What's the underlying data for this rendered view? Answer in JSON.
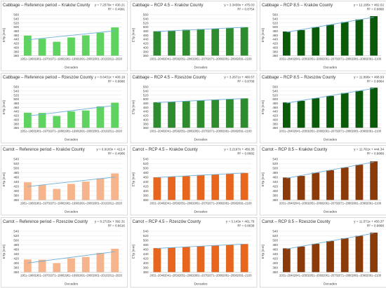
{
  "colors": {
    "panel_border": "#d0d0d0",
    "gridline": "#e4e4e4",
    "axis_text": "#404040",
    "trend": "#6fb0d8",
    "cabbage_ref": "#5fd35f",
    "cabbage_rcp45": "#2e8b2e",
    "cabbage_rcp85": "#0a5a0a",
    "carrot_ref": "#f5b48c",
    "carrot_rcp45": "#e8651e",
    "carrot_rcp85": "#8b3a0a"
  },
  "chart_data": [
    {
      "type": "bar",
      "title": "Cabbage – Reference period – Kraków County",
      "equation": "y = 7.2579x + 430.21",
      "r2": "R² = 0.4991",
      "xlabel": "Decades",
      "ylabel": "ETp [mm]",
      "ylim": [
        360,
        560
      ],
      "yticks": [
        "360",
        "380",
        "400",
        "420",
        "440",
        "460",
        "480",
        "500",
        "520",
        "540",
        "560"
      ],
      "categories": [
        "1951–1960",
        "1961–1970",
        "1971–1980",
        "1981–1990",
        "1991–2000",
        "2001–2010",
        "2011–2020"
      ],
      "values": [
        458,
        443,
        428,
        449,
        459,
        472,
        498
      ],
      "trend": [
        437.47,
        444.73,
        451.99,
        459.24,
        466.5,
        473.76,
        481.02
      ],
      "color_key": "cabbage_ref"
    },
    {
      "type": "bar",
      "title": "Cabbage – RCP 4.5 – Kraków County",
      "equation": "y = 3.3438x + 475.03",
      "r2": "R² = 0.8754",
      "xlabel": "Decades",
      "ylabel": "ETp [mm]",
      "ylim": [
        360,
        560
      ],
      "yticks": [
        "360",
        "380",
        "400",
        "420",
        "440",
        "460",
        "480",
        "500",
        "520",
        "540",
        "560"
      ],
      "categories": [
        "2031–2040",
        "2041–2050",
        "2051–2060",
        "2061–2070",
        "2071–2080",
        "2081–2090",
        "2091–2100"
      ],
      "values": [
        479,
        483,
        487,
        490,
        492,
        496,
        499
      ],
      "trend": [
        478.37,
        481.72,
        485.06,
        488.41,
        491.75,
        495.09,
        498.44
      ],
      "color_key": "cabbage_rcp45"
    },
    {
      "type": "bar",
      "title": "Cabbage – RCP 8.5 – Kraków County",
      "equation": "y = 12.195x + 462.52",
      "r2": "R² = 0.9868",
      "xlabel": "Decades",
      "ylabel": "ETp [mm]",
      "ylim": [
        360,
        560
      ],
      "yticks": [
        "360",
        "380",
        "400",
        "420",
        "440",
        "460",
        "480",
        "500",
        "520",
        "540",
        "560"
      ],
      "categories": [
        "2031–2040",
        "2041–2050",
        "2051–2060",
        "2061–2070",
        "2071–2080",
        "2081–2090",
        "2091–2100"
      ],
      "values": [
        478,
        485,
        499,
        511,
        524,
        537,
        553
      ],
      "trend": [
        474.72,
        486.91,
        499.11,
        511.3,
        523.5,
        535.69,
        547.89
      ],
      "color_key": "cabbage_rcp85"
    },
    {
      "type": "bar",
      "title": "Cabbage – Reference period – Rzeszów County",
      "equation": "y = 8.6431x + 409.19",
      "r2": "R² = 0.6686",
      "xlabel": "Decades",
      "ylabel": "ETp [mm]",
      "ylim": [
        360,
        560
      ],
      "yticks": [
        "360",
        "380",
        "400",
        "420",
        "440",
        "460",
        "480",
        "500",
        "520",
        "540",
        "560"
      ],
      "categories": [
        "1951–1960",
        "1961–1970",
        "1971–1980",
        "1981–1990",
        "1991–2000",
        "2001–2010",
        "2011–2020"
      ],
      "values": [
        434,
        433,
        418,
        440,
        445,
        465,
        483
      ],
      "trend": [
        417.83,
        426.48,
        435.12,
        443.76,
        452.41,
        461.05,
        469.69
      ],
      "color_key": "cabbage_ref"
    },
    {
      "type": "bar",
      "title": "Cabbage – RCP 4.5 – Rzeszów County",
      "equation": "y = 3.2671x + 480.67",
      "r2": "R² = 0.8709",
      "xlabel": "Decades",
      "ylabel": "ETp [mm]",
      "ylim": [
        360,
        560
      ],
      "yticks": [
        "360",
        "380",
        "400",
        "420",
        "440",
        "460",
        "480",
        "500",
        "520",
        "540",
        "560"
      ],
      "categories": [
        "2031–2040",
        "2041–2050",
        "2051–2060",
        "2061–2070",
        "2071–2080",
        "2081–2090",
        "2091–2100"
      ],
      "values": [
        485,
        488,
        491,
        494,
        498,
        501,
        504
      ],
      "trend": [
        483.94,
        487.2,
        490.47,
        493.74,
        497.01,
        500.27,
        503.54
      ],
      "color_key": "cabbage_rcp45"
    },
    {
      "type": "bar",
      "title": "Cabbage – RCP 8.5 – Rzeszów County",
      "equation": "y = 11.996x + 468.93",
      "r2": "R² = 0.9864",
      "xlabel": "Decades",
      "ylabel": "ETp [mm]",
      "ylim": [
        360,
        560
      ],
      "yticks": [
        "360",
        "380",
        "400",
        "420",
        "440",
        "460",
        "480",
        "500",
        "520",
        "540",
        "560"
      ],
      "categories": [
        "2031–2040",
        "2041–2050",
        "2051–2060",
        "2061–2070",
        "2071–2080",
        "2081–2090",
        "2091–2100"
      ],
      "values": [
        484,
        492,
        505,
        516,
        530,
        541,
        556
      ],
      "trend": [
        480.93,
        492.92,
        504.92,
        516.91,
        528.91,
        540.91,
        552.9
      ],
      "color_key": "cabbage_rcp85"
    },
    {
      "type": "bar",
      "title": "Carrot – Reference period – Kraków County",
      "equation": "y = 6.9183x + 412.4",
      "r2": "R² = 0.4906",
      "xlabel": "Decades",
      "ylabel": "ETp [mm]",
      "ylim": [
        360,
        540
      ],
      "yticks": [
        "360",
        "380",
        "400",
        "420",
        "440",
        "460",
        "480",
        "500",
        "520",
        "540"
      ],
      "categories": [
        "1951–1960",
        "1961–1970",
        "1971–1980",
        "1981–1990",
        "1991–2000",
        "2001–2010",
        "2011–2020"
      ],
      "values": [
        438,
        426,
        409,
        431,
        441,
        455,
        477
      ],
      "trend": [
        419.32,
        426.24,
        433.15,
        440.07,
        446.99,
        453.91,
        460.83
      ],
      "color_key": "carrot_ref"
    },
    {
      "type": "bar",
      "title": "Carrot – RCP 4.5 – Kraków County",
      "equation": "y = 3.2197x + 456.35",
      "r2": "R² = 0.8682",
      "xlabel": "Decades",
      "ylabel": "ETp [mm]",
      "ylim": [
        360,
        540
      ],
      "yticks": [
        "360",
        "380",
        "400",
        "420",
        "440",
        "460",
        "480",
        "500",
        "520",
        "540"
      ],
      "categories": [
        "2031–2040",
        "2041–2050",
        "2051–2060",
        "2061–2070",
        "2071–2080",
        "2081–2090",
        "2091–2100"
      ],
      "values": [
        460,
        463,
        466,
        470,
        472,
        476,
        479
      ],
      "trend": [
        459.57,
        462.79,
        466.01,
        469.23,
        472.45,
        475.67,
        478.89
      ],
      "color_key": "carrot_rcp45"
    },
    {
      "type": "bar",
      "title": "Carrot – RCP 8.5 – Kraków County",
      "equation": "y = 11.781x + 444.34",
      "r2": "R² = 0.9868",
      "xlabel": "Decades",
      "ylabel": "ETp [mm]",
      "ylim": [
        360,
        540
      ],
      "yticks": [
        "360",
        "380",
        "400",
        "420",
        "440",
        "460",
        "480",
        "500",
        "520",
        "540"
      ],
      "categories": [
        "2031–2040",
        "2041–2050",
        "2051–2060",
        "2061–2070",
        "2071–2080",
        "2081–2090",
        "2091–2100"
      ],
      "values": [
        459,
        466,
        480,
        491,
        503,
        515,
        530
      ],
      "trend": [
        456.12,
        467.9,
        479.68,
        491.46,
        503.25,
        515.03,
        526.81
      ],
      "color_key": "carrot_rcp85"
    },
    {
      "type": "bar",
      "title": "Carrot – Reference period – Rzeszów County",
      "equation": "y = 8.2715x + 392.31",
      "r2": "R² = 0.6616",
      "xlabel": "Decades",
      "ylabel": "ETp [mm]",
      "ylim": [
        360,
        540
      ],
      "yticks": [
        "360",
        "380",
        "400",
        "420",
        "440",
        "460",
        "480",
        "500",
        "520",
        "540"
      ],
      "categories": [
        "1951–1960",
        "1961–1970",
        "1971–1980",
        "1981–1990",
        "1991–2000",
        "2001–2010",
        "2011–2020"
      ],
      "values": [
        416,
        415,
        400,
        421,
        427,
        445,
        463
      ],
      "trend": [
        400.58,
        408.85,
        417.12,
        425.4,
        433.67,
        441.94,
        450.21
      ],
      "color_key": "carrot_ref"
    },
    {
      "type": "bar",
      "title": "Carrot – RCP 4.5 – Rzeszów County",
      "equation": "y = 3.143x + 461.79",
      "r2": "R² = 0.8639",
      "xlabel": "Decades",
      "ylabel": "ETp [mm]",
      "ylim": [
        360,
        540
      ],
      "yticks": [
        "360",
        "380",
        "400",
        "420",
        "440",
        "460",
        "480",
        "500",
        "520",
        "540"
      ],
      "categories": [
        "2031–2040",
        "2041–2050",
        "2051–2060",
        "2061–2070",
        "2071–2080",
        "2081–2090",
        "2091–2100"
      ],
      "values": [
        466,
        468,
        471,
        475,
        477,
        481,
        484
      ],
      "trend": [
        464.93,
        468.08,
        471.22,
        474.36,
        477.51,
        480.65,
        483.79
      ],
      "color_key": "carrot_rcp45"
    },
    {
      "type": "bar",
      "title": "Carrot – RCP 8.5 – Rzeszów County",
      "equation": "y = 11.571x + 450.37",
      "r2": "R² = 0.9868",
      "xlabel": "Decades",
      "ylabel": "ETp [mm]",
      "ylim": [
        360,
        540
      ],
      "yticks": [
        "360",
        "380",
        "400",
        "420",
        "440",
        "460",
        "480",
        "500",
        "520",
        "540"
      ],
      "categories": [
        "2031–2040",
        "2041–2050",
        "2051–2060",
        "2061–2070",
        "2071–2080",
        "2081–2090",
        "2091–2100"
      ],
      "values": [
        465,
        473,
        485,
        497,
        509,
        520,
        534
      ],
      "trend": [
        461.94,
        473.51,
        485.08,
        496.65,
        508.23,
        519.8,
        531.37
      ],
      "color_key": "carrot_rcp85"
    }
  ]
}
